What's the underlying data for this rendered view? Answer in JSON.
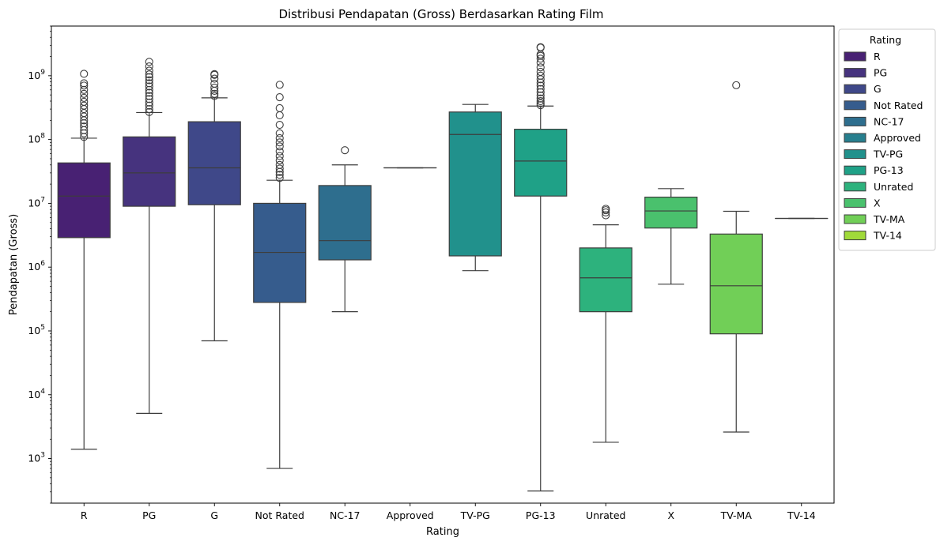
{
  "chart_data": {
    "type": "box",
    "title": "Distribusi Pendapatan (Gross) Berdasarkan Rating Film",
    "xlabel": "Rating",
    "ylabel": "Pendapatan (Gross)",
    "yscale": "log",
    "ylim": [
      200,
      6000000000
    ],
    "yticks": [
      {
        "value": 1000,
        "mant": "10",
        "exp": "3"
      },
      {
        "value": 10000,
        "mant": "10",
        "exp": "4"
      },
      {
        "value": 100000,
        "mant": "10",
        "exp": "5"
      },
      {
        "value": 1000000,
        "mant": "10",
        "exp": "6"
      },
      {
        "value": 10000000,
        "mant": "10",
        "exp": "7"
      },
      {
        "value": 100000000,
        "mant": "10",
        "exp": "8"
      },
      {
        "value": 1000000000,
        "mant": "10",
        "exp": "9"
      }
    ],
    "legend": {
      "title": "Rating",
      "placement": "upper-right-outside"
    },
    "grid": false,
    "categories": [
      "R",
      "PG",
      "G",
      "Not Rated",
      "NC-17",
      "Approved",
      "TV-PG",
      "PG-13",
      "Unrated",
      "X",
      "TV-MA",
      "TV-14"
    ],
    "series": [
      {
        "name": "R",
        "color": "#482173",
        "whislo": 1400,
        "q1": 2900000,
        "med": 13000000,
        "q3": 43000000,
        "whishi": 105000000,
        "fliers": [
          110000000,
          125000000,
          140000000,
          160000000,
          180000000,
          200000000,
          230000000,
          260000000,
          300000000,
          340000000,
          390000000,
          450000000,
          520000000,
          600000000,
          700000000,
          760000000,
          1070000000
        ]
      },
      {
        "name": "PG",
        "color": "#46337e",
        "whislo": 5100,
        "q1": 9000000,
        "med": 30000000,
        "q3": 110000000,
        "whishi": 265000000,
        "fliers": [
          270000000,
          300000000,
          340000000,
          380000000,
          430000000,
          480000000,
          540000000,
          600000000,
          680000000,
          760000000,
          850000000,
          950000000,
          1050000000,
          1200000000,
          1400000000,
          1650000000
        ]
      },
      {
        "name": "G",
        "color": "#3f4889",
        "whislo": 70000,
        "q1": 9500000,
        "med": 36000000,
        "q3": 190000000,
        "whishi": 450000000,
        "fliers": [
          480000000,
          520000000,
          580000000,
          650000000,
          750000000,
          900000000,
          1030000000,
          1060000000
        ]
      },
      {
        "name": "Not Rated",
        "color": "#365c8d",
        "whislo": 700,
        "q1": 280000,
        "med": 1700000,
        "q3": 10000000,
        "whishi": 23000000,
        "fliers": [
          25000000,
          28000000,
          31000000,
          35000000,
          40000000,
          47000000,
          55000000,
          65000000,
          78000000,
          90000000,
          105000000,
          125000000,
          170000000,
          240000000,
          310000000,
          460000000,
          720000000
        ]
      },
      {
        "name": "NC-17",
        "color": "#2e6e8e",
        "whislo": 200000,
        "q1": 1300000,
        "med": 2600000,
        "q3": 19000000,
        "whishi": 40000000,
        "fliers": [
          68000000
        ]
      },
      {
        "name": "Approved",
        "color": "#277f8e",
        "whislo": 36000000,
        "q1": 36000000,
        "med": 36000000,
        "q3": 36000000,
        "whishi": 36000000,
        "fliers": []
      },
      {
        "name": "TV-PG",
        "color": "#21918c",
        "whislo": 880000,
        "q1": 1500000,
        "med": 120000000,
        "q3": 270000000,
        "whishi": 355000000,
        "fliers": []
      },
      {
        "name": "PG-13",
        "color": "#1fa187",
        "whislo": 310,
        "q1": 13000000,
        "med": 46000000,
        "q3": 145000000,
        "whishi": 335000000,
        "fliers": [
          345000000,
          370000000,
          400000000,
          440000000,
          490000000,
          550000000,
          620000000,
          700000000,
          780000000,
          880000000,
          1000000000,
          1150000000,
          1350000000,
          1600000000,
          1850000000,
          2050000000,
          2150000000,
          2750000000,
          2800000000
        ]
      },
      {
        "name": "Unrated",
        "color": "#2db27d",
        "whislo": 1800,
        "q1": 200000,
        "med": 680000,
        "q3": 2000000,
        "whishi": 4600000,
        "fliers": [
          6500000,
          7200000,
          7800000,
          8200000
        ]
      },
      {
        "name": "X",
        "color": "#4ac16d",
        "whislo": 540000,
        "q1": 4100000,
        "med": 7600000,
        "q3": 12500000,
        "whishi": 17000000,
        "fliers": []
      },
      {
        "name": "TV-MA",
        "color": "#71cf57",
        "whislo": 2600,
        "q1": 90000,
        "med": 510000,
        "q3": 3300000,
        "whishi": 7500000,
        "fliers": [
          710000000
        ]
      },
      {
        "name": "TV-14",
        "color": "#a0da39",
        "whislo": 5800000,
        "q1": 5800000,
        "med": 5800000,
        "q3": 5800000,
        "whishi": 5800000,
        "fliers": []
      }
    ]
  }
}
